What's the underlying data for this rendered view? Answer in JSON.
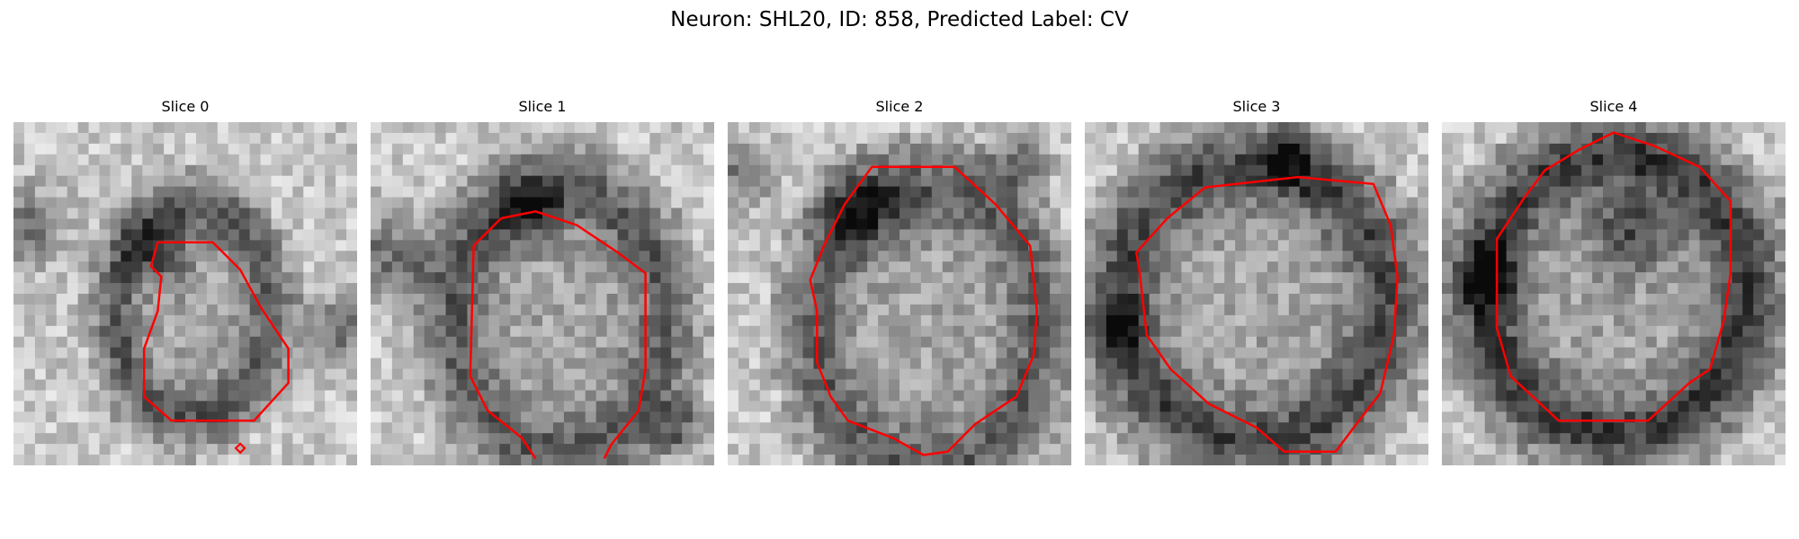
{
  "figure": {
    "title": "Neuron: SHL20, ID: 858, Predicted Label: CV",
    "contour_color": "#ff0000"
  },
  "slices": [
    {
      "label": "Slice 0"
    },
    {
      "label": "Slice 1"
    },
    {
      "label": "Slice 2"
    },
    {
      "label": "Slice 3"
    },
    {
      "label": "Slice 4"
    }
  ]
}
